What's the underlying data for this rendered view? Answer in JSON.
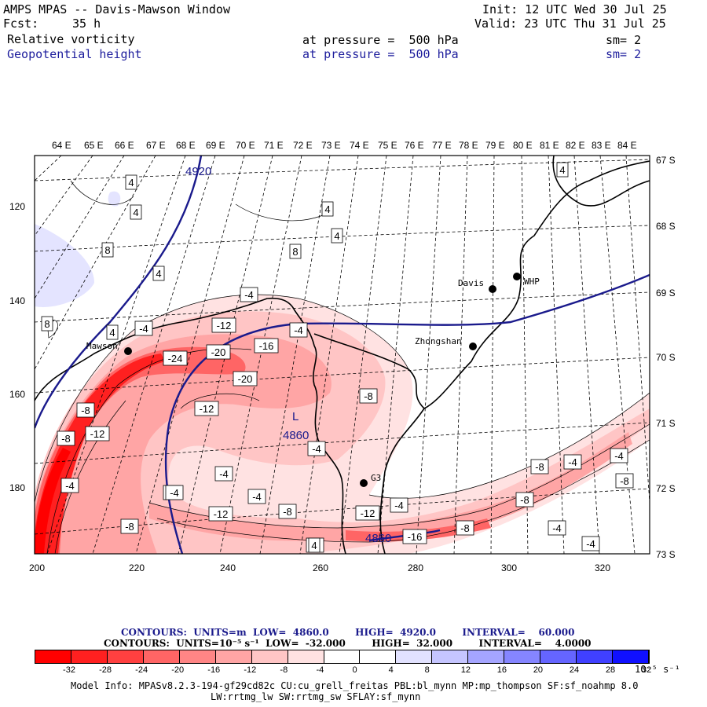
{
  "header": {
    "title": "AMPS MPAS -- Davis-Mawson Window",
    "fcst_label": "Fcst:",
    "fcst_value": "35 h",
    "init": "Init: 12 UTC Wed 30 Jul 25",
    "valid": "Valid: 23 UTC Thu 31 Jul 25",
    "fields": [
      {
        "name": "Relative vorticity",
        "level": "at pressure =  500 hPa",
        "sm": "sm= 2"
      },
      {
        "name": "Geopotential height",
        "level": "at pressure =  500 hPa",
        "sm": "sm= 2"
      }
    ]
  },
  "map": {
    "top_lon_labels": [
      "64 E",
      "65 E",
      "66 E",
      "67 E",
      "68 E",
      "69 E",
      "70 E",
      "71 E",
      "72 E",
      "73 E",
      "74 E",
      "75 E",
      "76 E",
      "77 E",
      "78 E",
      "79 E",
      "80 E",
      "81 E",
      "82 E",
      "83 E",
      "84 E"
    ],
    "right_lat_labels": [
      "67 S",
      "68 S",
      "69 S",
      "70 S",
      "71 S",
      "72 S",
      "73 S"
    ],
    "left_y_ticks": [
      "120",
      "140",
      "160",
      "180"
    ],
    "bottom_x_ticks": [
      "200",
      "220",
      "240",
      "260",
      "280",
      "300",
      "320"
    ],
    "stations": [
      {
        "name": "Davis"
      },
      {
        "name": "WHP"
      },
      {
        "name": "Zhongshan"
      },
      {
        "name": "Mawson"
      },
      {
        "name": "G3"
      }
    ],
    "height_labels": [
      "4920",
      "4860",
      "4860"
    ],
    "low_marker": "L",
    "vorticity_labels": [
      "4",
      "4",
      "8",
      "8",
      "4",
      "4",
      "4",
      "4",
      "8",
      "4",
      "-4",
      "-4",
      "-4",
      "-12",
      "-16",
      "-8",
      "-24",
      "-20",
      "-20",
      "-8",
      "-12",
      "-12",
      "-8",
      "-8",
      "-8",
      "-4",
      "-4",
      "-4",
      "-8",
      "-4",
      "-12",
      "-8",
      "-12",
      "-16",
      "-4",
      "-4",
      "-8",
      "-4",
      "-8",
      "-4",
      "-4",
      "-8",
      "-4",
      "4",
      "-4"
    ],
    "colors": {
      "frame": "#000000",
      "height_contour": "#1a1a8c",
      "coast": "#000000",
      "graticule": "#000000"
    }
  },
  "legend": {
    "line1": "CONTOURS:  UNITS=m  LOW=  4860.0        HIGH=  4920.0        INTERVAL=    60.000",
    "line2": "CONTOURS:  UNITS=10⁻⁵ s⁻¹  LOW=  -32.000        HIGH=  32.000        INTERVAL=    4.0000",
    "ticks": [
      "-32",
      "-28",
      "-24",
      "-20",
      "-16",
      "-12",
      "-8",
      "-4",
      "0",
      "4",
      "8",
      "12",
      "16",
      "20",
      "24",
      "28",
      "32"
    ],
    "units": "10⁻⁵ s⁻¹",
    "colors": [
      "#ff0000",
      "#ff2020",
      "#ff4040",
      "#ff6565",
      "#ff8585",
      "#ffa5a5",
      "#ffc5c5",
      "#ffe2e2",
      "#ffffff",
      "#ffffff",
      "#e2e2ff",
      "#c5c5ff",
      "#a5a5ff",
      "#8585ff",
      "#6565ff",
      "#4040ff",
      "#1010ff"
    ]
  },
  "footer": {
    "line1": "Model Info: MPASv8.2.3-194-gf29cd82c CU:cu_grell_freitas PBL:bl_mynn MP:mp_thompson SF:sf_noahmp 8.0",
    "line2": "LW:rrtmg_lw SW:rrtmg_sw SFLAY:sf_mynn"
  }
}
